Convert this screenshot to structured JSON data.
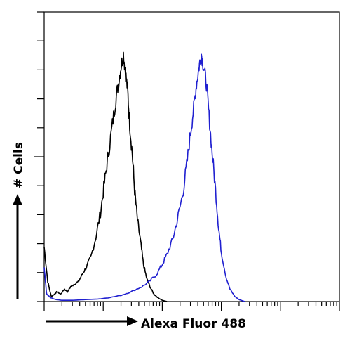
{
  "chart_data": {
    "type": "line",
    "xlabel": "Alexa Fluor 488",
    "ylabel": "# Cells",
    "xscale": "log",
    "xlim": [
      1,
      100000
    ],
    "ylim": [
      0,
      100
    ],
    "grid": false,
    "legend": "none",
    "series": [
      {
        "color": "#000000",
        "x": [
          1,
          1.15,
          1.32,
          1.5,
          1.65,
          1.9,
          2.2,
          2.5,
          2.8,
          3.2,
          3.8,
          4.4,
          5.2,
          6.2,
          7.5,
          9,
          10.5,
          12,
          14,
          16,
          18,
          20,
          22,
          24,
          26,
          28,
          31,
          34,
          38,
          43,
          48,
          55,
          62,
          72,
          85,
          100,
          120
        ],
        "y": [
          22,
          8,
          2,
          3,
          4,
          3,
          5,
          4,
          6,
          7,
          8,
          11,
          14,
          18,
          26,
          36,
          48,
          58,
          70,
          80,
          88,
          95,
          100,
          92,
          85,
          72,
          60,
          45,
          33,
          24,
          15,
          9,
          6,
          3,
          1.5,
          0.5,
          0
        ]
      },
      {
        "color": "#2020d0",
        "x": [
          1,
          1.1,
          1.3,
          1.6,
          2,
          3,
          5,
          8,
          12,
          20,
          30,
          45,
          60,
          80,
          100,
          120,
          150,
          180,
          220,
          260,
          300,
          340,
          380,
          420,
          460,
          500,
          560,
          620,
          700,
          800,
          900,
          1000,
          1200,
          1400,
          1700,
          2000,
          2500
        ],
        "y": [
          14,
          3,
          1.5,
          0.8,
          0.5,
          0.5,
          0.8,
          1,
          1.5,
          2.5,
          4,
          6,
          8,
          11,
          15,
          19,
          25,
          33,
          43,
          55,
          68,
          78,
          88,
          95,
          100,
          95,
          88,
          75,
          60,
          45,
          30,
          20,
          10,
          5,
          2,
          0.8,
          0
        ]
      }
    ]
  },
  "colors": {
    "axis": "#000000",
    "arrow": "#000000"
  }
}
